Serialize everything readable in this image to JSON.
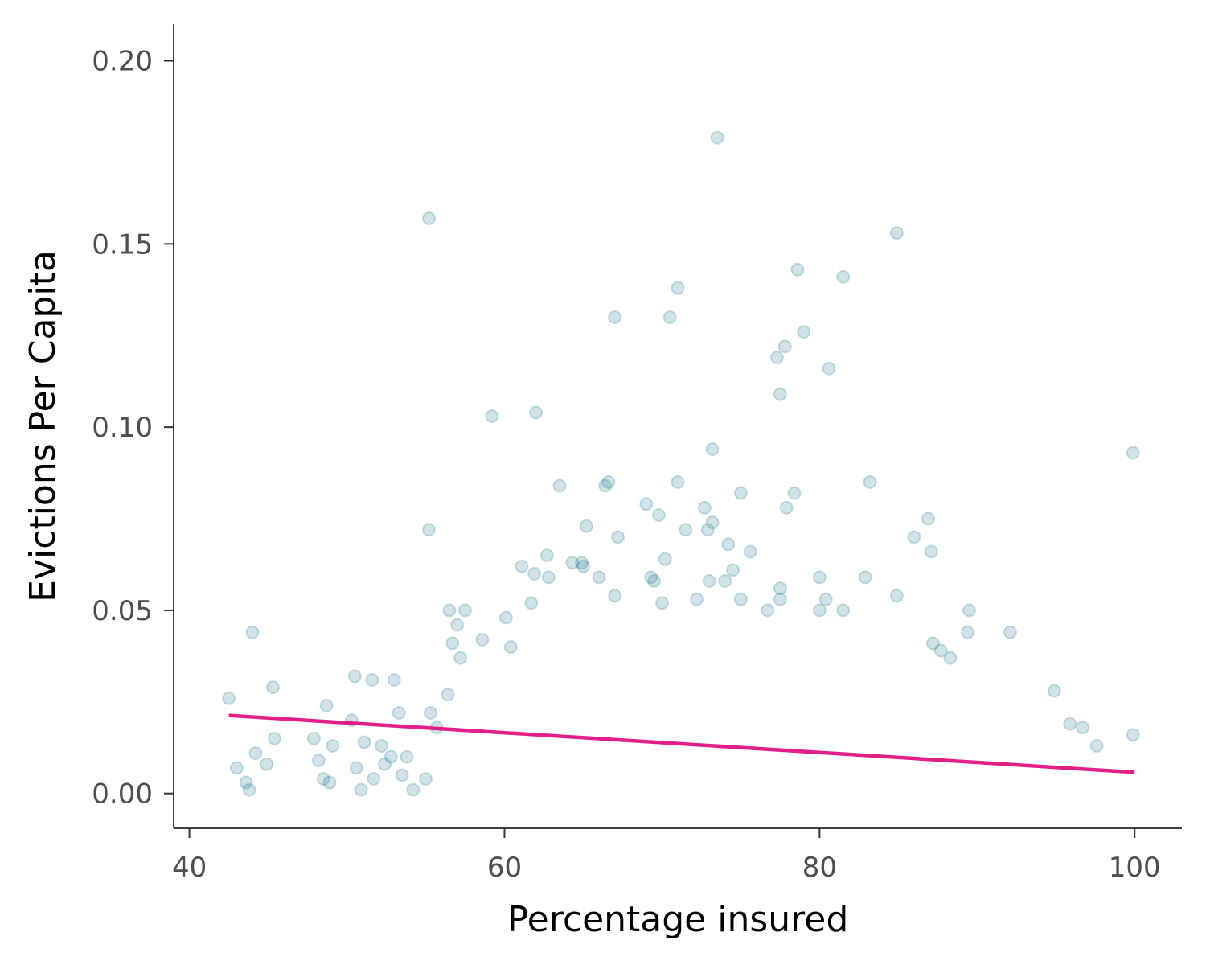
{
  "chart_data": {
    "type": "scatter",
    "title": "",
    "xlabel": "Percentage insured",
    "ylabel": "Evictions Per Capita",
    "xlim": [
      39,
      103
    ],
    "ylim": [
      -0.0095,
      0.21
    ],
    "x_ticks": [
      40,
      60,
      80,
      100
    ],
    "x_tick_labels": [
      "40",
      "60",
      "80",
      "100"
    ],
    "y_ticks": [
      0.0,
      0.05,
      0.1,
      0.15,
      0.2
    ],
    "y_tick_labels": [
      "0.00",
      "0.05",
      "0.10",
      "0.15",
      "0.20"
    ],
    "grid": false,
    "legend": "none",
    "point_color": "#17738a",
    "point_alpha": 0.2,
    "trend_color": "#e21f88",
    "trend_line": {
      "x": [
        42.5,
        100
      ],
      "y": [
        0.0213,
        0.0058
      ]
    },
    "highlighted_points": [
      [
        73.5,
        0.179
      ],
      [
        55.2,
        0.157
      ],
      [
        84.9,
        0.153
      ],
      [
        78.6,
        0.143
      ],
      [
        81.5,
        0.141
      ],
      [
        71.0,
        0.138
      ],
      [
        67.0,
        0.13
      ],
      [
        70.5,
        0.13
      ],
      [
        79.0,
        0.126
      ],
      [
        77.8,
        0.122
      ],
      [
        77.3,
        0.119
      ],
      [
        80.6,
        0.116
      ],
      [
        77.5,
        0.109
      ],
      [
        59.2,
        0.103
      ],
      [
        62.0,
        0.104
      ],
      [
        73.2,
        0.094
      ],
      [
        99.9,
        0.093
      ],
      [
        83.2,
        0.085
      ],
      [
        63.5,
        0.084
      ],
      [
        66.4,
        0.084
      ],
      [
        66.6,
        0.085
      ],
      [
        71.0,
        0.085
      ],
      [
        75.0,
        0.082
      ],
      [
        78.4,
        0.082
      ],
      [
        69.0,
        0.079
      ],
      [
        72.7,
        0.078
      ],
      [
        77.9,
        0.078
      ],
      [
        69.8,
        0.076
      ],
      [
        86.9,
        0.075
      ],
      [
        73.2,
        0.074
      ],
      [
        55.2,
        0.072
      ],
      [
        72.9,
        0.072
      ],
      [
        71.5,
        0.072
      ],
      [
        67.2,
        0.07
      ],
      [
        86.0,
        0.07
      ],
      [
        65.2,
        0.073
      ],
      [
        74.2,
        0.068
      ],
      [
        87.1,
        0.066
      ],
      [
        75.6,
        0.066
      ],
      [
        62.7,
        0.065
      ],
      [
        70.2,
        0.064
      ],
      [
        64.3,
        0.063
      ],
      [
        64.9,
        0.063
      ],
      [
        65.0,
        0.062
      ],
      [
        74.5,
        0.061
      ],
      [
        61.1,
        0.062
      ],
      [
        61.9,
        0.06
      ],
      [
        62.8,
        0.059
      ],
      [
        66.0,
        0.059
      ],
      [
        69.3,
        0.059
      ],
      [
        80.0,
        0.059
      ],
      [
        82.9,
        0.059
      ],
      [
        74.0,
        0.058
      ],
      [
        73.0,
        0.058
      ],
      [
        69.5,
        0.058
      ],
      [
        77.5,
        0.056
      ],
      [
        84.9,
        0.054
      ],
      [
        80.4,
        0.053
      ],
      [
        61.7,
        0.052
      ],
      [
        72.2,
        0.053
      ],
      [
        75.0,
        0.053
      ],
      [
        77.5,
        0.053
      ],
      [
        56.5,
        0.05
      ],
      [
        57.5,
        0.05
      ],
      [
        67.0,
        0.054
      ],
      [
        70.0,
        0.052
      ],
      [
        76.7,
        0.05
      ],
      [
        89.5,
        0.05
      ],
      [
        80.0,
        0.05
      ],
      [
        81.5,
        0.05
      ],
      [
        44.0,
        0.044
      ],
      [
        45.3,
        0.029
      ],
      [
        42.5,
        0.026
      ],
      [
        43.0,
        0.007
      ],
      [
        43.6,
        0.003
      ],
      [
        43.8,
        0.001
      ],
      [
        44.2,
        0.011
      ],
      [
        44.9,
        0.008
      ],
      [
        45.4,
        0.015
      ],
      [
        47.9,
        0.015
      ],
      [
        48.2,
        0.009
      ],
      [
        48.5,
        0.004
      ],
      [
        48.7,
        0.024
      ],
      [
        48.9,
        0.003
      ],
      [
        49.1,
        0.013
      ],
      [
        50.5,
        0.032
      ],
      [
        51.6,
        0.031
      ],
      [
        50.3,
        0.02
      ],
      [
        50.6,
        0.007
      ],
      [
        50.9,
        0.001
      ],
      [
        51.1,
        0.014
      ],
      [
        51.7,
        0.004
      ],
      [
        52.2,
        0.013
      ],
      [
        52.4,
        0.008
      ],
      [
        52.8,
        0.01
      ],
      [
        53.0,
        0.031
      ],
      [
        53.3,
        0.022
      ],
      [
        53.5,
        0.005
      ],
      [
        53.8,
        0.01
      ],
      [
        54.2,
        0.001
      ],
      [
        55.0,
        0.004
      ],
      [
        55.3,
        0.022
      ],
      [
        55.7,
        0.018
      ],
      [
        56.4,
        0.027
      ],
      [
        56.7,
        0.041
      ],
      [
        57.0,
        0.046
      ],
      [
        57.2,
        0.037
      ],
      [
        58.6,
        0.042
      ],
      [
        60.1,
        0.048
      ],
      [
        60.4,
        0.04
      ],
      [
        92.1,
        0.044
      ],
      [
        89.4,
        0.044
      ],
      [
        87.2,
        0.041
      ],
      [
        87.7,
        0.039
      ],
      [
        88.3,
        0.037
      ],
      [
        94.9,
        0.028
      ],
      [
        95.9,
        0.019
      ],
      [
        96.7,
        0.018
      ],
      [
        97.6,
        0.013
      ],
      [
        99.9,
        0.016
      ]
    ]
  }
}
